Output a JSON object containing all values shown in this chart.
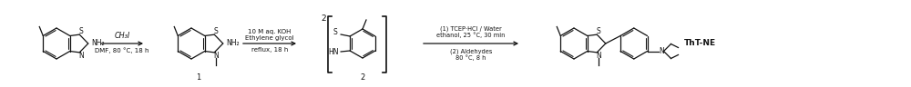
{
  "figsize": [
    10.0,
    0.96
  ],
  "dpi": 100,
  "background_color": "#ffffff",
  "text_color": "#111111",
  "arrow_color": "#111111",
  "line_color": "#111111",
  "line_width": 0.9,
  "arrow1_top": "CH₃I",
  "arrow1_bot": "DMF, 80 °C, 18 h",
  "arrow2_top1": "10 M aq. KOH",
  "arrow2_top2": "Ethylene glycol",
  "arrow2_bot": "reflux, 18 h",
  "arrow3_top1": "(1) TCEP·HCl / Water",
  "arrow3_top2": "ethanol, 25 °C, 30 min",
  "arrow3_bot1": "(2) Aldehydes",
  "arrow3_bot2": "80 °C, 8 h",
  "label1": "1",
  "label2": "2",
  "label_product": "ThT-NE",
  "dimer_coeff": "2",
  "NH2": "NH₂",
  "HN": "HN",
  "S": "S",
  "N": "N"
}
